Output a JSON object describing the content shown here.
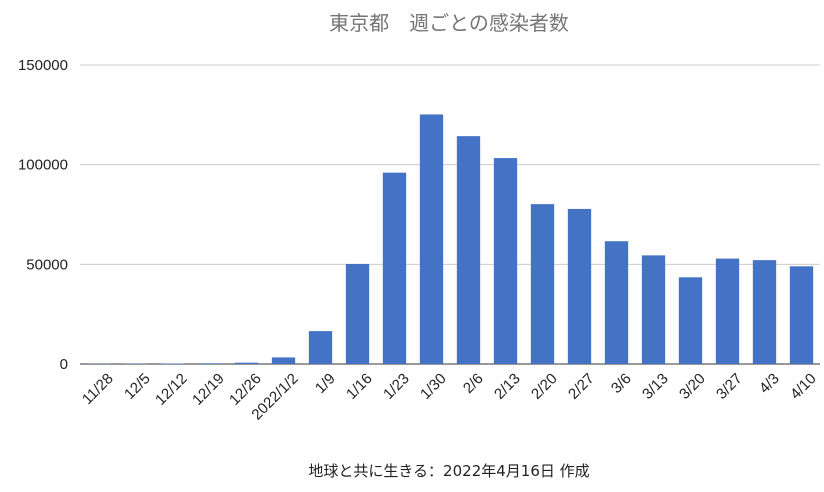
{
  "chart_data": {
    "type": "bar",
    "title": "東京都　週ごとの感染者数",
    "xlabel": "地球と共に生きる：2022年4月16日 作成",
    "ylabel": "",
    "ylim": [
      0,
      150000
    ],
    "yticks": [
      "0",
      "50000",
      "100000",
      "150000"
    ],
    "grid": true,
    "bar_color": "#4472c4",
    "categories": [
      "11/28",
      "12/5",
      "12/12",
      "12/19",
      "12/26",
      "2022/1/2",
      "1/9",
      "1/16",
      "1/23",
      "1/30",
      "2/6",
      "2/13",
      "2/20",
      "2/27",
      "3/6",
      "3/13",
      "3/20",
      "3/27",
      "4/3",
      "4/10"
    ],
    "values": [
      150,
      200,
      250,
      350,
      650,
      3300,
      16500,
      50200,
      96000,
      125200,
      114300,
      103300,
      80200,
      77800,
      61600,
      54500,
      43500,
      52900,
      52100,
      49000
    ]
  }
}
